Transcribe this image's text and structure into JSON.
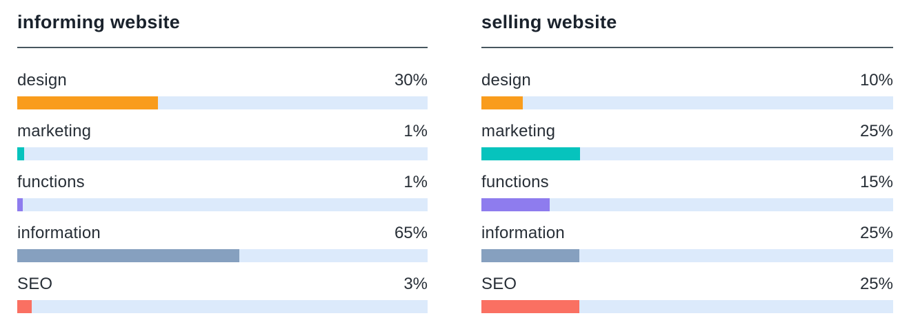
{
  "track_color": "#dceafb",
  "title_underline_color": "#47565f",
  "charts": [
    {
      "title": "informing website",
      "rows": [
        {
          "label": "design",
          "value": 30,
          "value_label": "30%",
          "fill_percent": 34.3,
          "color": "#f99c1c",
          "color_name": "orange"
        },
        {
          "label": "marketing",
          "value": 1,
          "value_label": "1%",
          "fill_percent": 1.7,
          "color": "#06c3bd",
          "color_name": "teal"
        },
        {
          "label": "functions",
          "value": 1,
          "value_label": "1%",
          "fill_percent": 1.4,
          "color": "#8e7cee",
          "color_name": "purple"
        },
        {
          "label": "information",
          "value": 65,
          "value_label": "65%",
          "fill_percent": 54.1,
          "color": "#86a0bf",
          "color_name": "slate-blue"
        },
        {
          "label": "SEO",
          "value": 3,
          "value_label": "3%",
          "fill_percent": 3.6,
          "color": "#fa7062",
          "color_name": "salmon"
        }
      ]
    },
    {
      "title": "selling website",
      "rows": [
        {
          "label": "design",
          "value": 10,
          "value_label": "10%",
          "fill_percent": 10.1,
          "color": "#f99c1c",
          "color_name": "orange"
        },
        {
          "label": "marketing",
          "value": 25,
          "value_label": "25%",
          "fill_percent": 24.0,
          "color": "#06c3bd",
          "color_name": "teal"
        },
        {
          "label": "functions",
          "value": 15,
          "value_label": "15%",
          "fill_percent": 16.6,
          "color": "#8e7cee",
          "color_name": "purple"
        },
        {
          "label": "information",
          "value": 25,
          "value_label": "25%",
          "fill_percent": 23.8,
          "color": "#86a0bf",
          "color_name": "slate-blue"
        },
        {
          "label": "SEO",
          "value": 25,
          "value_label": "25%",
          "fill_percent": 23.8,
          "color": "#fa7062",
          "color_name": "salmon"
        }
      ]
    }
  ],
  "chart_data": [
    {
      "type": "bar",
      "orientation": "horizontal",
      "title": "informing website",
      "categories": [
        "design",
        "marketing",
        "functions",
        "information",
        "SEO"
      ],
      "values": [
        30,
        1,
        1,
        65,
        3
      ],
      "unit": "%",
      "xlabel": "",
      "ylabel": "",
      "xlim": [
        0,
        100
      ],
      "grid": false,
      "legend": false,
      "bar_colors": [
        "#f99c1c",
        "#06c3bd",
        "#8e7cee",
        "#86a0bf",
        "#fa7062"
      ],
      "track_color": "#dceafb",
      "value_labels": [
        "30%",
        "1%",
        "1%",
        "65%",
        "3%"
      ]
    },
    {
      "type": "bar",
      "orientation": "horizontal",
      "title": "selling website",
      "categories": [
        "design",
        "marketing",
        "functions",
        "information",
        "SEO"
      ],
      "values": [
        10,
        25,
        15,
        25,
        25
      ],
      "unit": "%",
      "xlabel": "",
      "ylabel": "",
      "xlim": [
        0,
        100
      ],
      "grid": false,
      "legend": false,
      "bar_colors": [
        "#f99c1c",
        "#06c3bd",
        "#8e7cee",
        "#86a0bf",
        "#fa7062"
      ],
      "track_color": "#dceafb",
      "value_labels": [
        "10%",
        "25%",
        "15%",
        "25%",
        "25%"
      ]
    }
  ]
}
